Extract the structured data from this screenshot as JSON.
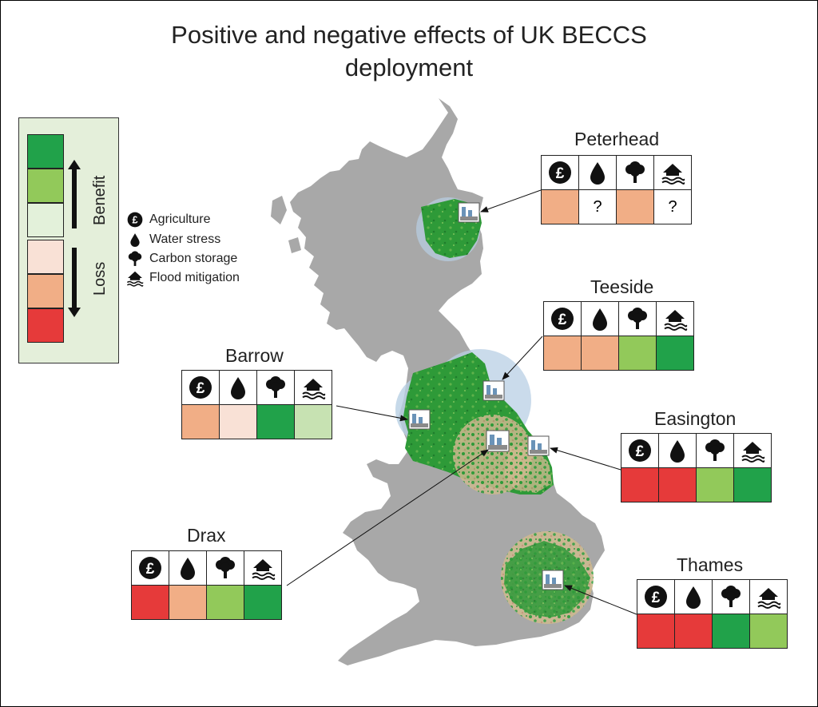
{
  "title": {
    "line1": "Positive and negative effects of UK BECCS",
    "line2": "deployment"
  },
  "colors": {
    "map_land": "#a8a8a8",
    "map_green": "#2e9a38",
    "map_tan": "#d8c4a0",
    "map_blue_tint": "#b8cfe4",
    "legend_bg": "#e4efda",
    "scale": [
      "#21a24a",
      "#92c95a",
      "#e3f1da",
      "#f9e1d6",
      "#f1ae86",
      "#e63a3a"
    ]
  },
  "legend": {
    "scale_labels": {
      "benefit": "Benefit",
      "loss": "Loss"
    },
    "items": [
      {
        "icon": "pound-icon",
        "label": "Agriculture"
      },
      {
        "icon": "drop-icon",
        "label": "Water stress"
      },
      {
        "icon": "tree-icon",
        "label": "Carbon storage"
      },
      {
        "icon": "house-flood-icon",
        "label": "Flood mitigation"
      }
    ]
  },
  "sites": [
    {
      "id": "peterhead",
      "name": "Peterhead",
      "cells": [
        {
          "color": "#f1ae86",
          "text": ""
        },
        {
          "color": "#ffffff",
          "text": "?"
        },
        {
          "color": "#f1ae86",
          "text": ""
        },
        {
          "color": "#ffffff",
          "text": "?"
        }
      ]
    },
    {
      "id": "teeside",
      "name": "Teeside",
      "cells": [
        {
          "color": "#f1ae86",
          "text": ""
        },
        {
          "color": "#f1ae86",
          "text": ""
        },
        {
          "color": "#92c95a",
          "text": ""
        },
        {
          "color": "#21a24a",
          "text": ""
        }
      ]
    },
    {
      "id": "barrow",
      "name": "Barrow",
      "cells": [
        {
          "color": "#f1ae86",
          "text": ""
        },
        {
          "color": "#f9e1d6",
          "text": ""
        },
        {
          "color": "#21a24a",
          "text": ""
        },
        {
          "color": "#c7e2b2",
          "text": ""
        }
      ]
    },
    {
      "id": "easington",
      "name": "Easington",
      "cells": [
        {
          "color": "#e63a3a",
          "text": ""
        },
        {
          "color": "#e63a3a",
          "text": ""
        },
        {
          "color": "#92c95a",
          "text": ""
        },
        {
          "color": "#21a24a",
          "text": ""
        }
      ]
    },
    {
      "id": "drax",
      "name": "Drax",
      "cells": [
        {
          "color": "#e63a3a",
          "text": ""
        },
        {
          "color": "#f1ae86",
          "text": ""
        },
        {
          "color": "#92c95a",
          "text": ""
        },
        {
          "color": "#21a24a",
          "text": ""
        }
      ]
    },
    {
      "id": "thames",
      "name": "Thames",
      "cells": [
        {
          "color": "#e63a3a",
          "text": ""
        },
        {
          "color": "#e63a3a",
          "text": ""
        },
        {
          "color": "#21a24a",
          "text": ""
        },
        {
          "color": "#92c95a",
          "text": ""
        }
      ]
    }
  ]
}
